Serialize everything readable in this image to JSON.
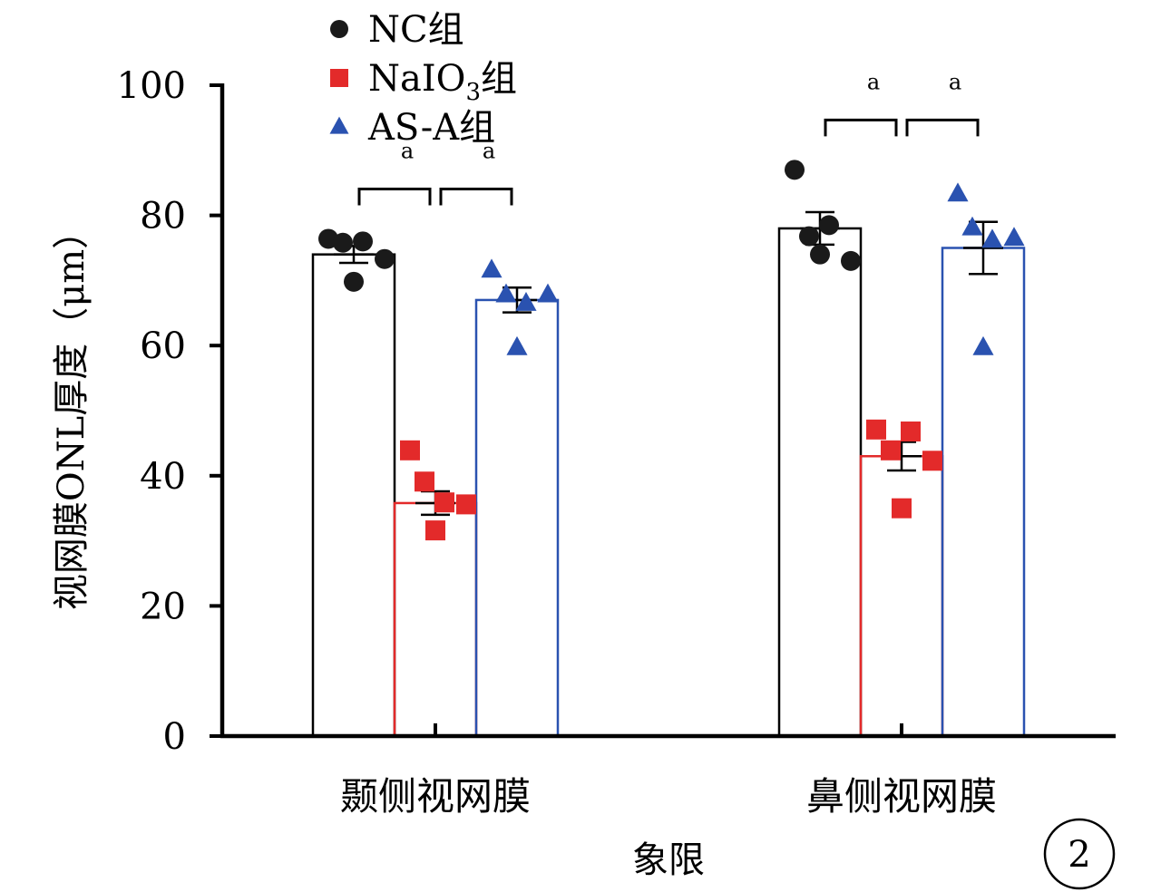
{
  "chart_data": {
    "type": "bar",
    "categories": [
      "颞侧视网膜",
      "鼻侧视网膜"
    ],
    "xlabel": "象限",
    "ylabel": "视网膜ONL厚度（μm）",
    "ylim": [
      0,
      100
    ],
    "yticks": [
      0,
      20,
      40,
      60,
      80,
      100
    ],
    "legend_position": "top-left",
    "panel_label": "2",
    "significance_label": "a",
    "series": [
      {
        "name": "NC组",
        "marker": "circle",
        "marker_color": "#1a1a1a",
        "bar_color": "#000000",
        "means": [
          74,
          78
        ],
        "sem": [
          1.3,
          2.5
        ],
        "points": [
          [
            76.4,
            75.8,
            76,
            73.3,
            69.8
          ],
          [
            87,
            76.8,
            78.5,
            73,
            74
          ]
        ]
      },
      {
        "name": "NaIO3组",
        "marker": "square",
        "marker_color": "#e32a2a",
        "bar_color": "#e32a2a",
        "means": [
          35.8,
          43
        ],
        "sem": [
          1.8,
          2.2
        ],
        "points": [
          [
            43.9,
            39.1,
            35.9,
            35.6,
            31.6
          ],
          [
            47.1,
            43.9,
            46.8,
            42.3,
            35
          ]
        ]
      },
      {
        "name": "AS-A组",
        "marker": "triangle",
        "marker_color": "#2a52b0",
        "bar_color": "#2a52b0",
        "means": [
          67,
          75
        ],
        "sem": [
          1.9,
          4
        ],
        "points": [
          [
            71.6,
            67.8,
            66.5,
            67.8,
            59.7
          ],
          [
            83.3,
            78.1,
            76.2,
            76.5,
            59.7
          ]
        ]
      }
    ],
    "comparisons": [
      {
        "category": 0,
        "from": 0,
        "to": 1,
        "label": "a"
      },
      {
        "category": 0,
        "from": 1,
        "to": 2,
        "label": "a"
      },
      {
        "category": 1,
        "from": 0,
        "to": 1,
        "label": "a"
      },
      {
        "category": 1,
        "from": 1,
        "to": 2,
        "label": "a"
      }
    ]
  }
}
